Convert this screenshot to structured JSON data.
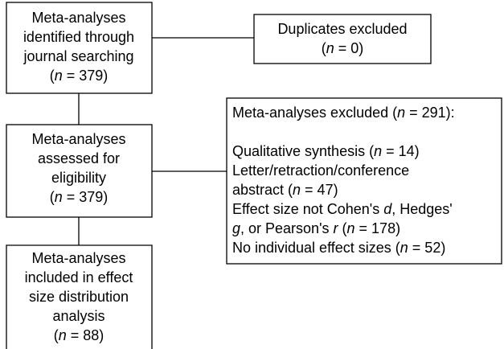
{
  "identified": {
    "lines": [
      [
        "Meta-analyses"
      ],
      [
        "identified through"
      ],
      [
        "journal searching"
      ],
      [
        "(",
        {
          "italic": "n"
        },
        " = 379)"
      ]
    ]
  },
  "duplicates": {
    "lines": [
      [
        "Duplicates excluded"
      ],
      [
        "(",
        {
          "italic": "n"
        },
        " = 0)"
      ]
    ]
  },
  "assessed": {
    "lines": [
      [
        "Meta-analyses"
      ],
      [
        "assessed for"
      ],
      [
        "eligibility"
      ],
      [
        "(",
        {
          "italic": "n"
        },
        " = 379)"
      ]
    ]
  },
  "excluded": {
    "heading": [
      "Meta-analyses excluded (",
      {
        "italic": "n"
      },
      " = 291):"
    ],
    "reasons": [
      [
        "Qualitative synthesis (",
        {
          "italic": "n"
        },
        " = 14)"
      ],
      [
        "Letter/retraction/conference"
      ],
      [
        "abstract (",
        {
          "italic": "n"
        },
        " = 47)"
      ],
      [
        "Effect size not Cohen's ",
        {
          "italic": "d"
        },
        ", Hedges'"
      ],
      [
        {
          "italic": "g"
        },
        ", or Pearson's ",
        {
          "italic": "r"
        },
        " (",
        {
          "italic": "n"
        },
        " = 178)"
      ],
      [
        "No individual effect sizes (",
        {
          "italic": "n"
        },
        " = 52)"
      ]
    ]
  },
  "included": {
    "lines": [
      [
        "Meta-analyses"
      ],
      [
        "included in effect"
      ],
      [
        "size distribution"
      ],
      [
        "analysis"
      ],
      [
        "(",
        {
          "italic": "n"
        },
        " = 88)"
      ]
    ]
  }
}
